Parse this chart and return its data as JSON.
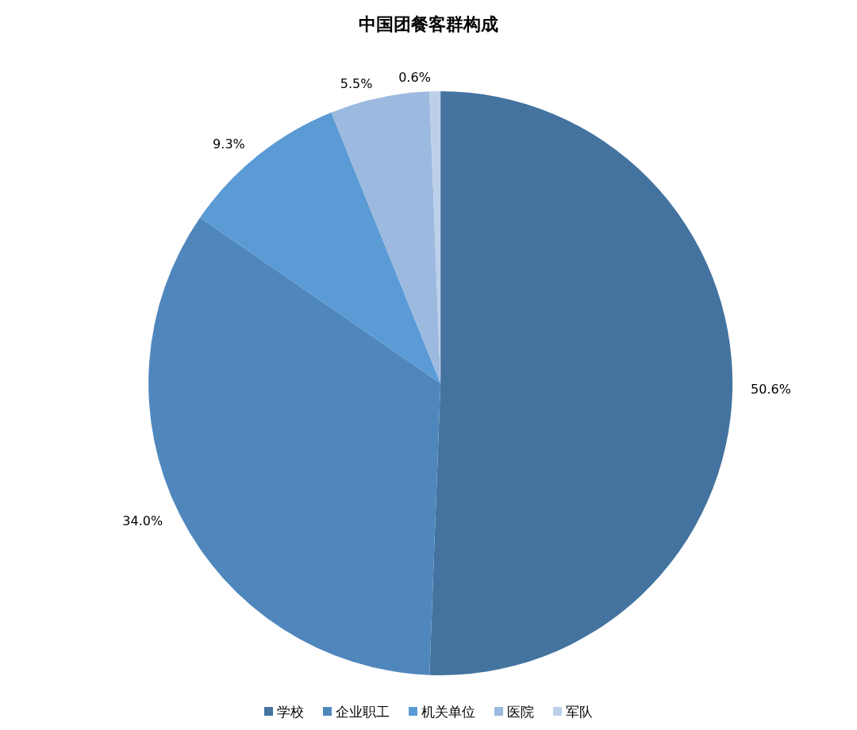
{
  "chart_data": {
    "type": "pie",
    "title": "中国团餐客群构成",
    "categories": [
      "学校",
      "企业职工",
      "机关单位",
      "医院",
      "军队"
    ],
    "values": [
      50.6,
      34.0,
      9.3,
      5.5,
      0.6
    ],
    "value_labels": [
      "50.6%",
      "34.0%",
      "9.3%",
      "5.5%",
      "0.6%"
    ],
    "colors": [
      "#44739f",
      "#4f87bd",
      "#5b9bd5",
      "#9cb9df",
      "#bdd0ea"
    ],
    "legend": "bottom"
  }
}
